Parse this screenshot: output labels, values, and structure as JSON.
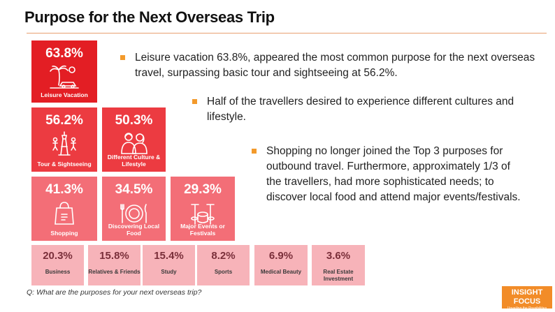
{
  "slide": {
    "title": "Purpose for the Next Overseas Trip",
    "question": "Q: What are the purposes for your next overseas trip?",
    "logo_line1": "INSIGHT FOCUS",
    "logo_line2": "Unveiling the Possibilities",
    "accent": "#f39a2b"
  },
  "bullets": [
    {
      "text": "Leisure vacation 63.8%, appeared the most common purpose for the next overseas travel, surpassing basic tour and sightseeing at 56.2%."
    },
    {
      "text": "Half of the travellers desired to experience different cultures and lifestyle."
    },
    {
      "text": "Shopping no longer joined the Top 3 purposes for outbound travel. Furthermore, approximately 1/3 of the travellers, had more sophisticated needs; to discover local food and attend major events/festivals."
    }
  ],
  "chart_data": {
    "type": "bar",
    "unit": "%",
    "categories": [
      "Leisure Vacation",
      "Tour & Sightseeing",
      "Different Culture & Lifestyle",
      "Shopping",
      "Discovering Local Food",
      "Major Events or Festivals",
      "Business",
      "Relatives & Friends",
      "Study",
      "Sports",
      "Medical Beauty",
      "Real Estate Investment"
    ],
    "values": [
      63.8,
      56.2,
      50.3,
      41.3,
      34.5,
      29.3,
      20.3,
      15.8,
      15.4,
      8.2,
      6.9,
      3.6
    ],
    "labels": [
      "63.8%",
      "56.2%",
      "50.3%",
      "41.3%",
      "34.5%",
      "29.3%",
      "20.3%",
      "15.8%",
      "15.4%",
      "8.2%",
      "6.9%",
      "3.6%"
    ],
    "icons": [
      "beach-palm-icon",
      "tower-icon",
      "people-icon",
      "shopping-bag-icon",
      "food-plate-icon",
      "drums-icon",
      "",
      "",
      "",
      "",
      "",
      ""
    ],
    "colors": {
      "tier1": "#e31e24",
      "tier2": "#ec3b41",
      "tier3": "#f36e77",
      "tier4": "#f7b3b9"
    }
  }
}
